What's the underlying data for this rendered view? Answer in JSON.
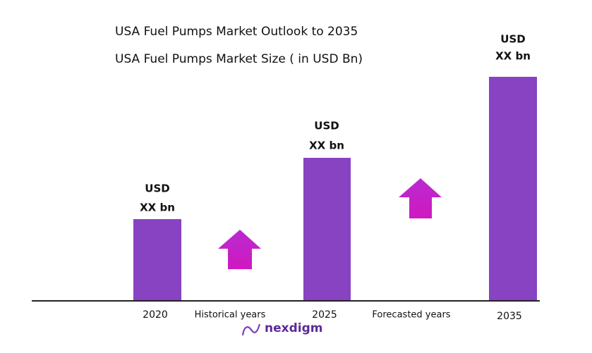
{
  "header": {
    "title": "USA Fuel Pumps Market Outlook to 2035",
    "subtitle": "USA Fuel Pumps  Market Size  ( in USD Bn)"
  },
  "bars": [
    {
      "category": "2020",
      "label": [
        "USD",
        "XX bn"
      ]
    },
    {
      "category": "2025",
      "label": [
        "USD",
        "XX bn"
      ]
    },
    {
      "category": "2035",
      "label": [
        "USD",
        "XX bn"
      ]
    }
  ],
  "annotations": [
    "Historical years",
    "Forecasted years"
  ],
  "logo": "nexdigm"
}
